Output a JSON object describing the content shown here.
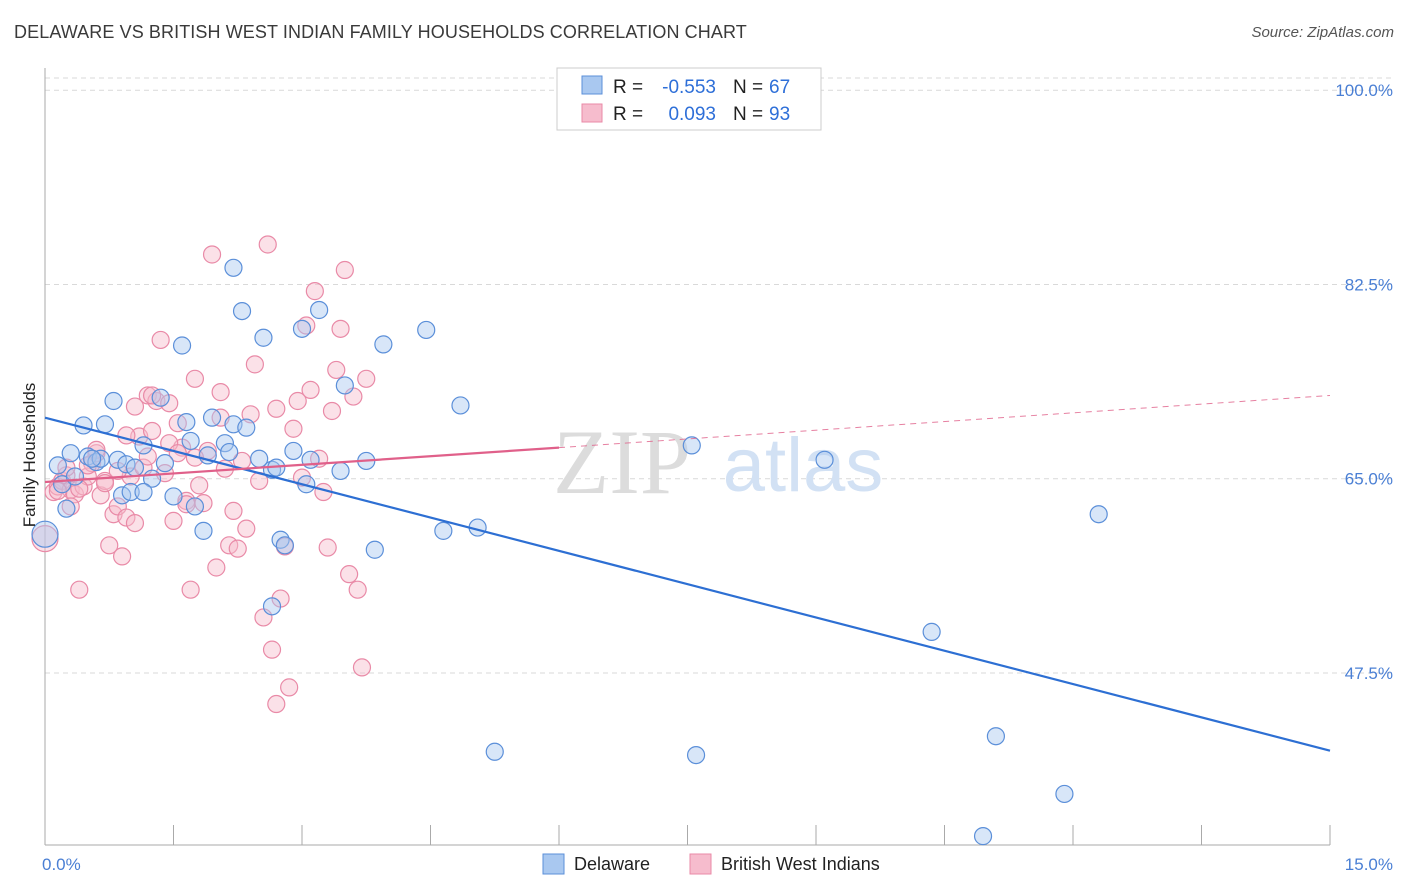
{
  "title": "DELAWARE VS BRITISH WEST INDIAN FAMILY HOUSEHOLDS CORRELATION CHART",
  "source": "Source: ZipAtlas.com",
  "watermark": {
    "zip": "ZIP",
    "atlas": "atlas"
  },
  "legend": {
    "r_label": "R =",
    "n_label": "N =",
    "rows": [
      {
        "r": "-0.553",
        "n": "67"
      },
      {
        "r": "0.093",
        "n": "93"
      }
    ]
  },
  "colors": {
    "delaware_fill": "#a9c8f0",
    "delaware_stroke": "#5b8fd9",
    "delaware_line": "#2d6fd3",
    "bwi_fill": "#f6bccd",
    "bwi_stroke": "#e98aa7",
    "bwi_line": "#e0608a",
    "grid": "#d9d9d9",
    "tick_label": "#4a7fd4"
  },
  "chart_data": {
    "type": "scatter",
    "title": "DELAWARE VS BRITISH WEST INDIAN FAMILY HOUSEHOLDS CORRELATION CHART",
    "xlabel": "",
    "ylabel": "Family Households",
    "xlim": [
      0,
      15
    ],
    "ylim": [
      32,
      102
    ],
    "x_tick_labels": [
      "0.0%",
      "15.0%"
    ],
    "y_ticks": [
      47.5,
      65.0,
      82.5,
      100.0
    ],
    "y_tick_labels": [
      "47.5%",
      "65.0%",
      "82.5%",
      "100.0%"
    ],
    "grid": true,
    "legend_placement": "top-center",
    "series": [
      {
        "name": "Delaware",
        "r": -0.553,
        "n": 67,
        "trend": {
          "x": [
            0,
            15
          ],
          "y": [
            70.5,
            40.5
          ]
        },
        "points": [
          [
            0.0,
            60.0
          ],
          [
            0.15,
            66.2
          ],
          [
            0.2,
            64.5
          ],
          [
            0.25,
            62.3
          ],
          [
            0.3,
            67.3
          ],
          [
            0.35,
            65.2
          ],
          [
            0.45,
            69.8
          ],
          [
            0.5,
            67.0
          ],
          [
            0.6,
            66.5
          ],
          [
            0.65,
            66.8
          ],
          [
            0.7,
            69.9
          ],
          [
            0.8,
            72.0
          ],
          [
            0.85,
            66.7
          ],
          [
            0.9,
            63.5
          ],
          [
            0.95,
            66.3
          ],
          [
            1.0,
            63.8
          ],
          [
            1.05,
            66.0
          ],
          [
            1.15,
            68.0
          ],
          [
            1.25,
            65.0
          ],
          [
            1.35,
            72.3
          ],
          [
            1.4,
            66.4
          ],
          [
            1.5,
            63.4
          ],
          [
            1.6,
            77.0
          ],
          [
            1.65,
            70.1
          ],
          [
            1.7,
            68.4
          ],
          [
            1.75,
            62.5
          ],
          [
            1.85,
            60.3
          ],
          [
            1.9,
            67.1
          ],
          [
            1.95,
            70.5
          ],
          [
            2.1,
            68.2
          ],
          [
            2.15,
            67.4
          ],
          [
            2.2,
            69.9
          ],
          [
            2.3,
            80.1
          ],
          [
            2.35,
            69.6
          ],
          [
            2.2,
            84.0
          ],
          [
            2.5,
            66.8
          ],
          [
            2.55,
            77.7
          ],
          [
            2.65,
            65.8
          ],
          [
            2.7,
            66.0
          ],
          [
            2.75,
            59.5
          ],
          [
            2.8,
            59.0
          ],
          [
            2.65,
            53.5
          ],
          [
            2.9,
            67.5
          ],
          [
            3.0,
            78.5
          ],
          [
            3.05,
            64.5
          ],
          [
            3.1,
            66.7
          ],
          [
            3.2,
            80.2
          ],
          [
            3.45,
            65.7
          ],
          [
            3.5,
            73.4
          ],
          [
            3.75,
            66.6
          ],
          [
            3.85,
            58.6
          ],
          [
            3.95,
            77.1
          ],
          [
            4.45,
            78.4
          ],
          [
            4.65,
            60.3
          ],
          [
            4.85,
            71.6
          ],
          [
            5.05,
            60.6
          ],
          [
            5.25,
            40.4
          ],
          [
            7.55,
            68.0
          ],
          [
            7.6,
            40.1
          ],
          [
            9.1,
            66.7
          ],
          [
            10.35,
            51.2
          ],
          [
            10.95,
            32.8
          ],
          [
            11.1,
            41.8
          ],
          [
            11.9,
            36.6
          ],
          [
            12.3,
            61.8
          ],
          [
            0.55,
            66.8
          ],
          [
            1.15,
            63.8
          ]
        ]
      },
      {
        "name": "British West Indians",
        "r": 0.093,
        "n": 93,
        "trend": {
          "x": [
            0,
            6.0
          ],
          "y": [
            64.7,
            67.8
          ]
        },
        "trend_extension": {
          "x": [
            6.0,
            15
          ],
          "y": [
            67.8,
            72.5
          ]
        },
        "points": [
          [
            0.0,
            59.6
          ],
          [
            0.1,
            63.8
          ],
          [
            0.15,
            64.3
          ],
          [
            0.2,
            64.8
          ],
          [
            0.25,
            65.3
          ],
          [
            0.3,
            64.0
          ],
          [
            0.35,
            63.6
          ],
          [
            0.4,
            55.0
          ],
          [
            0.45,
            64.3
          ],
          [
            0.5,
            65.2
          ],
          [
            0.55,
            66.4
          ],
          [
            0.6,
            67.3
          ],
          [
            0.65,
            63.5
          ],
          [
            0.7,
            64.8
          ],
          [
            0.75,
            59.0
          ],
          [
            0.8,
            61.8
          ],
          [
            0.85,
            62.5
          ],
          [
            0.9,
            58.0
          ],
          [
            0.95,
            61.5
          ],
          [
            1.0,
            65.2
          ],
          [
            1.05,
            71.5
          ],
          [
            1.1,
            68.8
          ],
          [
            1.15,
            66.0
          ],
          [
            1.2,
            72.5
          ],
          [
            1.25,
            69.3
          ],
          [
            1.3,
            72.0
          ],
          [
            1.35,
            77.5
          ],
          [
            1.4,
            65.5
          ],
          [
            1.45,
            71.8
          ],
          [
            1.5,
            61.2
          ],
          [
            1.55,
            70.0
          ],
          [
            1.6,
            67.8
          ],
          [
            1.65,
            63.0
          ],
          [
            1.7,
            55.0
          ],
          [
            1.75,
            74.0
          ],
          [
            1.8,
            64.4
          ],
          [
            1.85,
            62.8
          ],
          [
            1.9,
            67.5
          ],
          [
            1.95,
            85.2
          ],
          [
            2.0,
            57.0
          ],
          [
            2.05,
            72.8
          ],
          [
            2.1,
            65.9
          ],
          [
            2.15,
            59.0
          ],
          [
            2.2,
            62.1
          ],
          [
            2.25,
            58.7
          ],
          [
            2.3,
            66.6
          ],
          [
            2.35,
            60.5
          ],
          [
            2.4,
            70.8
          ],
          [
            2.45,
            75.3
          ],
          [
            2.5,
            64.8
          ],
          [
            2.55,
            52.5
          ],
          [
            2.6,
            86.1
          ],
          [
            2.65,
            49.6
          ],
          [
            2.7,
            71.3
          ],
          [
            2.75,
            54.2
          ],
          [
            2.8,
            58.9
          ],
          [
            2.85,
            46.2
          ],
          [
            2.9,
            69.5
          ],
          [
            2.95,
            72.0
          ],
          [
            3.0,
            65.1
          ],
          [
            3.05,
            78.8
          ],
          [
            3.1,
            73.0
          ],
          [
            3.15,
            81.9
          ],
          [
            3.2,
            66.8
          ],
          [
            3.25,
            63.8
          ],
          [
            3.3,
            58.8
          ],
          [
            3.35,
            71.1
          ],
          [
            3.4,
            74.8
          ],
          [
            3.45,
            78.5
          ],
          [
            3.5,
            83.8
          ],
          [
            3.55,
            56.4
          ],
          [
            3.6,
            72.4
          ],
          [
            3.65,
            55.0
          ],
          [
            3.7,
            48.0
          ],
          [
            3.75,
            74.0
          ],
          [
            2.7,
            44.7
          ],
          [
            1.25,
            72.5
          ],
          [
            0.3,
            62.5
          ],
          [
            0.5,
            66.2
          ],
          [
            0.95,
            68.9
          ],
          [
            1.75,
            66.9
          ],
          [
            1.45,
            68.2
          ],
          [
            2.05,
            70.5
          ],
          [
            0.7,
            64.6
          ],
          [
            1.05,
            61.0
          ],
          [
            0.85,
            65.7
          ],
          [
            0.6,
            67.6
          ],
          [
            1.55,
            67.3
          ],
          [
            0.4,
            64.1
          ],
          [
            0.25,
            66.0
          ],
          [
            1.2,
            67.0
          ],
          [
            0.15,
            63.9
          ],
          [
            1.65,
            62.7
          ]
        ]
      }
    ]
  }
}
